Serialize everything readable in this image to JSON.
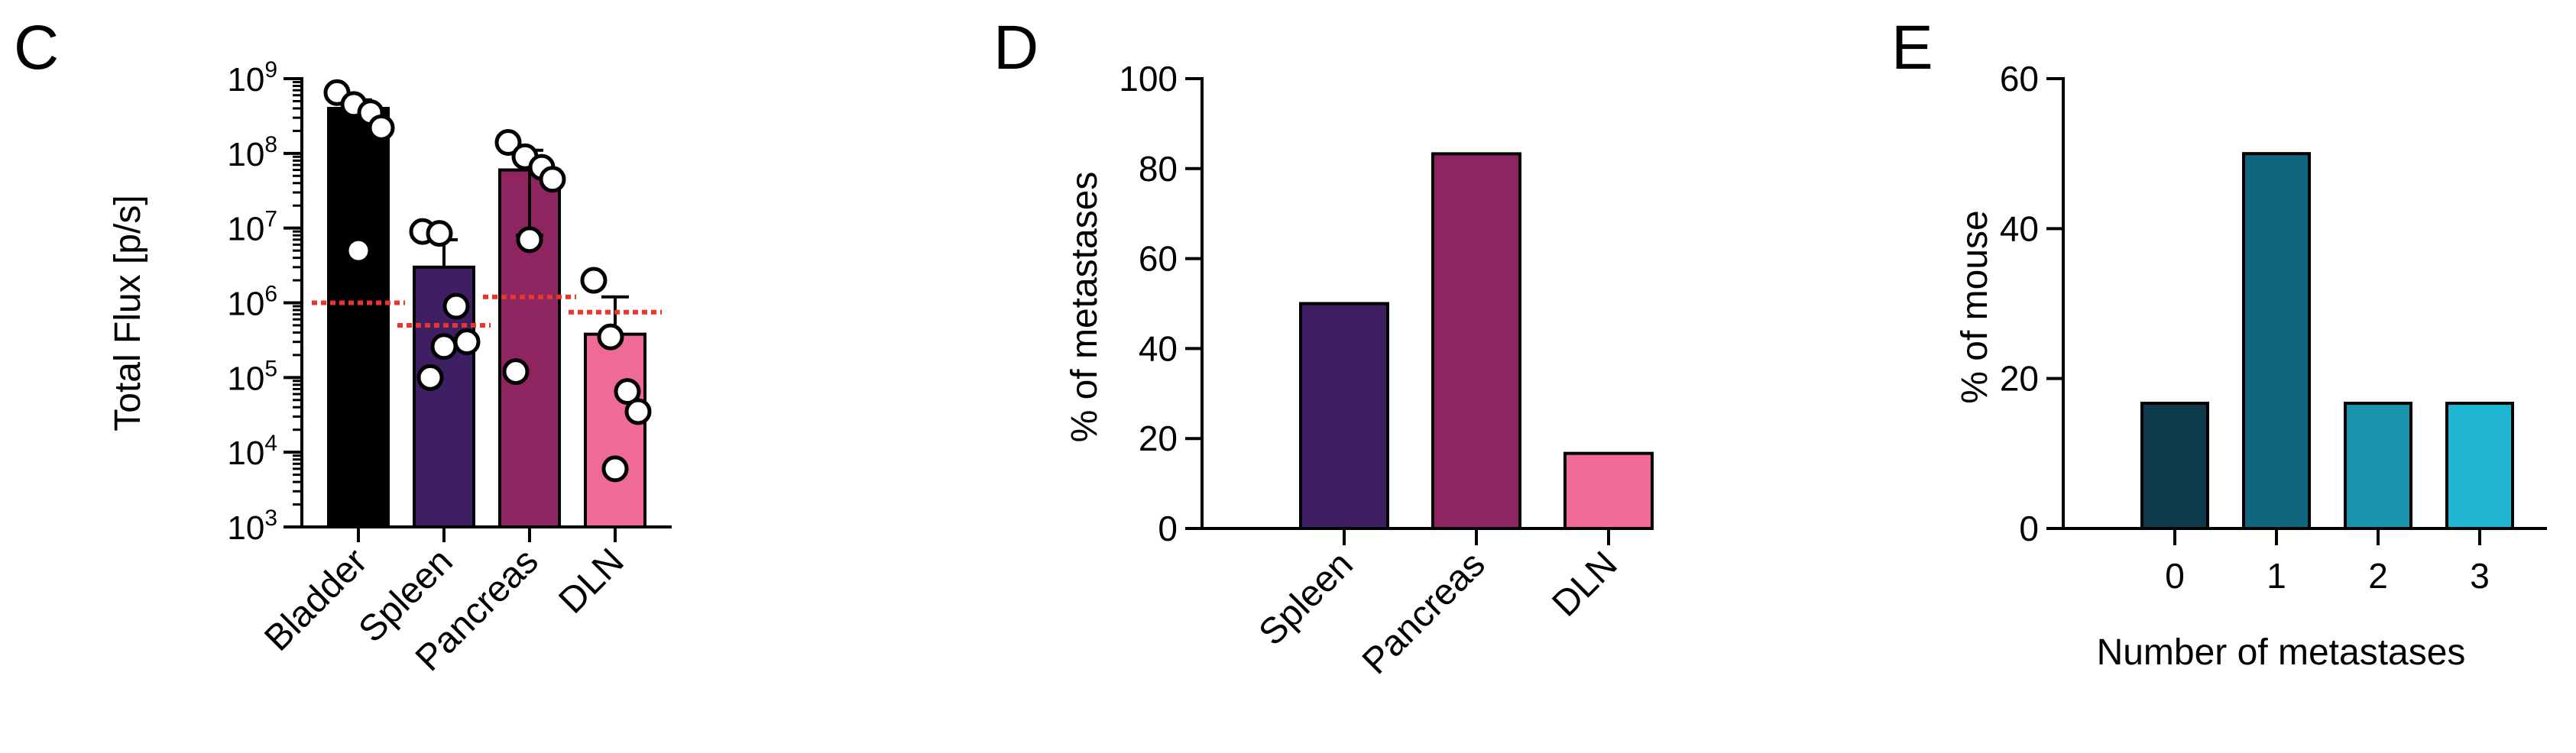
{
  "panels": [
    {
      "letter": "C"
    },
    {
      "letter": "D"
    },
    {
      "letter": "E"
    }
  ],
  "chart_data": [
    {
      "panel": "C",
      "type": "bar",
      "scale": "log10",
      "ylabel": "Total Flux [p/s]",
      "ylim": [
        1000,
        1000000000
      ],
      "yticks": [
        {
          "base": "10",
          "exp": "3"
        },
        {
          "base": "10",
          "exp": "4"
        },
        {
          "base": "10",
          "exp": "5"
        },
        {
          "base": "10",
          "exp": "6"
        },
        {
          "base": "10",
          "exp": "7"
        },
        {
          "base": "10",
          "exp": "8"
        },
        {
          "base": "10",
          "exp": "9"
        }
      ],
      "categories": [
        "Bladder",
        "Spleen",
        "Pancreas",
        "DLN"
      ],
      "values": [
        400000000,
        3000000,
        60000000,
        380000
      ],
      "error_upper": [
        520000000,
        7000000,
        110000000,
        1200000
      ],
      "error_lower": [
        null,
        null,
        8000000,
        null
      ],
      "thresholds": [
        1000000,
        500000,
        1200000,
        750000
      ],
      "points": [
        [
          650000000,
          450000000,
          350000000,
          220000000,
          5000000
        ],
        [
          9000000,
          8500000,
          900000,
          300000,
          260000,
          100000
        ],
        [
          140000000,
          90000000,
          65000000,
          45000000,
          7000000,
          120000
        ],
        [
          2000000,
          350000,
          65000,
          35000,
          6000
        ]
      ],
      "colors": [
        "#000000",
        "#3f1f63",
        "#8e2460",
        "#ef6a95"
      ],
      "threshold_color": "#e8362f"
    },
    {
      "panel": "D",
      "type": "bar",
      "ylabel": "% of metastases",
      "ylim": [
        0,
        100
      ],
      "yticks": [
        "0",
        "20",
        "40",
        "60",
        "80",
        "100"
      ],
      "categories": [
        "Spleen",
        "Pancreas",
        "DLN"
      ],
      "values": [
        50,
        83.3,
        16.7
      ],
      "colors": [
        "#3f1f63",
        "#8e2460",
        "#ef6a95"
      ]
    },
    {
      "panel": "E",
      "type": "bar",
      "ylabel": "% of mouse",
      "xlabel": "Number of metastases",
      "ylim": [
        0,
        60
      ],
      "yticks": [
        "0",
        "20",
        "40",
        "60"
      ],
      "categories": [
        "0",
        "1",
        "2",
        "3"
      ],
      "values": [
        16.7,
        50,
        16.7,
        16.7
      ],
      "colors": [
        "#0d3b4b",
        "#11667f",
        "#1a93ad",
        "#1fb5d3"
      ]
    }
  ]
}
